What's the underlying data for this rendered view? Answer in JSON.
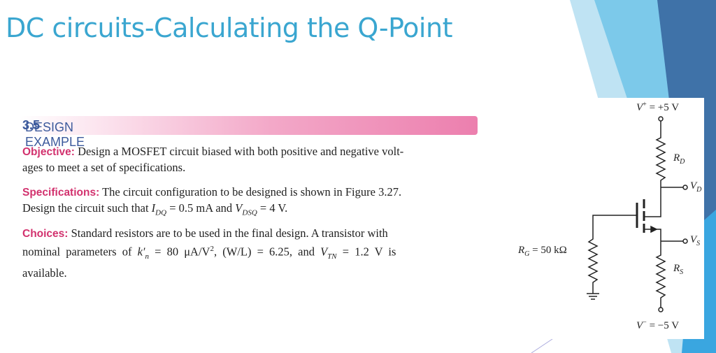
{
  "title": "DC circuits-Calculating the Q-Point",
  "example": {
    "label": "DESIGN EXAMPLE",
    "number": "3.5"
  },
  "paragraphs": [
    {
      "heading": "Objective:",
      "lines": [
        [
          "Design a MOSFET circuit biased with both positive and negative volt-"
        ],
        [
          "ages to meet a set of specifications."
        ]
      ]
    },
    {
      "heading": "Specifications:",
      "lines": [
        [
          "The circuit configuration to be designed is shown in Figure 3.27."
        ],
        [
          "Design the circuit such that ",
          "I",
          "DQ",
          " = 0.5 mA and ",
          "V",
          "DSQ",
          " = 4 V."
        ]
      ]
    },
    {
      "heading": "Choices:",
      "lines": [
        [
          "Standard resistors are to be used in the final design. A transistor with"
        ],
        [
          "nominal parameters of ",
          "k′",
          "n",
          " = 80 μA/V",
          "2",
          ", (W/L) = 6.25, and ",
          "V",
          "TN",
          " = 1.2 V is"
        ],
        [
          "available."
        ]
      ]
    }
  ],
  "circuit": {
    "vplus": [
      "V",
      "+",
      " = +5 V"
    ],
    "rd": [
      "R",
      "D"
    ],
    "vd": [
      "V",
      "D"
    ],
    "vs": [
      "V",
      "S"
    ],
    "rs": [
      "R",
      "S"
    ],
    "rg": [
      "R",
      "G",
      " = 50 kΩ"
    ],
    "vminus": [
      "V",
      "−",
      " = −5 V"
    ]
  }
}
